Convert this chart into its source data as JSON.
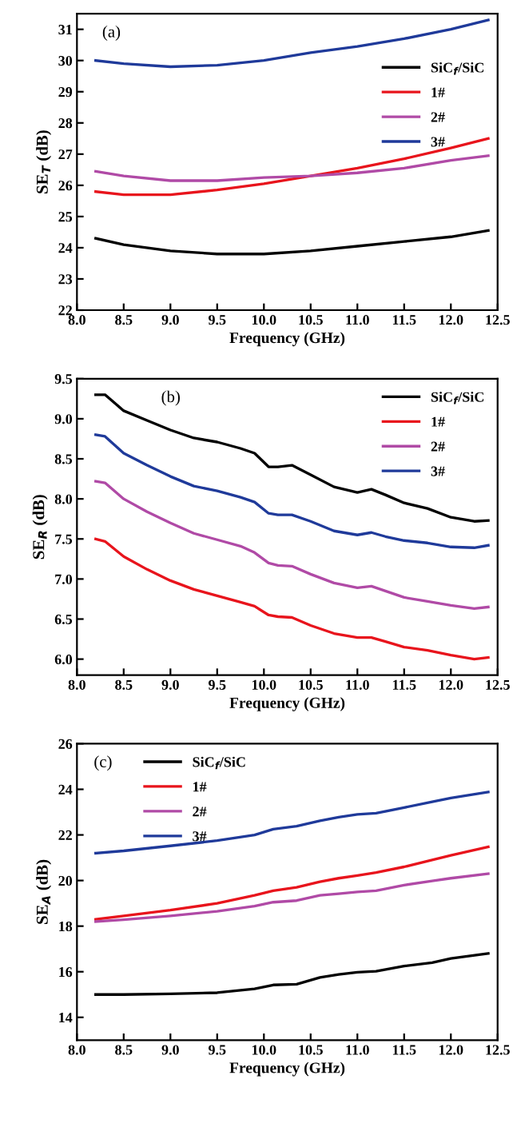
{
  "chart_data": [
    {
      "type": "line",
      "xlabel": "Frequency (GHz)",
      "ylabel": "SE$_{T}$ (dB)",
      "annotations": [
        "(a)"
      ],
      "legend": "top right",
      "grid": false,
      "x": [
        8.2,
        8.5,
        9.0,
        9.5,
        10.0,
        10.5,
        11.0,
        11.5,
        12.0,
        12.4
      ],
      "xlim": [
        8.0,
        12.5
      ],
      "xticks": [
        {
          "value": 8,
          "label": "8.0"
        },
        8.5,
        {
          "value": 9,
          "label": "9.0"
        },
        9.5,
        {
          "value": 10,
          "label": "10.0"
        },
        10.5,
        {
          "value": 11,
          "label": "11.0"
        },
        11.5,
        {
          "value": 12,
          "label": "12.0"
        },
        12.5
      ],
      "ylim": [
        22,
        31.5
      ],
      "yticks": [
        22,
        23,
        24,
        25,
        26,
        27,
        28,
        29,
        30,
        31
      ],
      "series": [
        {
          "name": "SiC$_{f}$/SiC",
          "color": "#000000",
          "values": [
            24.3,
            24.1,
            23.9,
            23.8,
            23.8,
            23.9,
            24.05,
            24.2,
            24.35,
            24.55
          ]
        },
        {
          "name": "1#",
          "color": "#e8141c",
          "values": [
            25.8,
            25.7,
            25.7,
            25.85,
            26.05,
            26.3,
            26.55,
            26.85,
            27.2,
            27.5
          ]
        },
        {
          "name": "2#",
          "color": "#b04aa6",
          "values": [
            26.45,
            26.3,
            26.15,
            26.15,
            26.25,
            26.3,
            26.4,
            26.55,
            26.8,
            26.95
          ]
        },
        {
          "name": "3#",
          "color": "#1f3a9a",
          "values": [
            30.0,
            29.9,
            29.8,
            29.85,
            30.0,
            30.25,
            30.45,
            30.7,
            31.0,
            31.3
          ]
        }
      ]
    },
    {
      "type": "line",
      "xlabel": "Frequency (GHz)",
      "ylabel": "SE$_{R}$ (dB)",
      "annotations": [
        "(b)"
      ],
      "legend": "top right",
      "grid": false,
      "x": [
        8.2,
        8.3,
        8.5,
        8.75,
        9.0,
        9.25,
        9.5,
        9.75,
        9.9,
        10.05,
        10.15,
        10.3,
        10.5,
        10.75,
        11.0,
        11.15,
        11.3,
        11.5,
        11.75,
        12.0,
        12.25,
        12.4
      ],
      "xlim": [
        8.0,
        12.5
      ],
      "xticks": [
        {
          "value": 8,
          "label": "8.0"
        },
        8.5,
        {
          "value": 9,
          "label": "9.0"
        },
        9.5,
        {
          "value": 10,
          "label": "10.0"
        },
        10.5,
        {
          "value": 11,
          "label": "11.0"
        },
        11.5,
        {
          "value": 12,
          "label": "12.0"
        },
        12.5
      ],
      "ylim": [
        5.8,
        9.5
      ],
      "yticks": [
        {
          "value": 6,
          "label": "6.0"
        },
        6.5,
        {
          "value": 7,
          "label": "7.0"
        },
        7.5,
        {
          "value": 8,
          "label": "8.0"
        },
        8.5,
        {
          "value": 9,
          "label": "9.0"
        },
        9.5
      ],
      "series": [
        {
          "name": "SiC$_{f}$/SiC",
          "color": "#000000",
          "values": [
            9.3,
            9.3,
            9.1,
            8.98,
            8.86,
            8.76,
            8.71,
            8.63,
            8.57,
            8.4,
            8.4,
            8.42,
            8.3,
            8.15,
            8.08,
            8.12,
            8.05,
            7.95,
            7.88,
            7.77,
            7.72,
            7.73
          ]
        },
        {
          "name": "1#",
          "color": "#e8141c",
          "values": [
            7.5,
            7.47,
            7.28,
            7.12,
            6.98,
            6.87,
            6.79,
            6.71,
            6.66,
            6.55,
            6.53,
            6.52,
            6.42,
            6.32,
            6.27,
            6.27,
            6.22,
            6.15,
            6.11,
            6.05,
            6.0,
            6.02
          ]
        },
        {
          "name": "2#",
          "color": "#b04aa6",
          "values": [
            8.22,
            8.2,
            8.0,
            7.84,
            7.7,
            7.57,
            7.49,
            7.41,
            7.33,
            7.2,
            7.17,
            7.16,
            7.06,
            6.95,
            6.89,
            6.91,
            6.85,
            6.77,
            6.72,
            6.67,
            6.63,
            6.65
          ]
        },
        {
          "name": "3#",
          "color": "#1f3a9a",
          "values": [
            8.8,
            8.78,
            8.57,
            8.42,
            8.28,
            8.16,
            8.1,
            8.02,
            7.96,
            7.82,
            7.8,
            7.8,
            7.72,
            7.6,
            7.55,
            7.58,
            7.53,
            7.48,
            7.45,
            7.4,
            7.39,
            7.42
          ]
        }
      ]
    },
    {
      "type": "line",
      "xlabel": "Frequency (GHz)",
      "ylabel": "SE$_{A}$ (dB)",
      "annotations": [
        "(c)"
      ],
      "legend": "top left",
      "grid": false,
      "x": [
        8.2,
        8.5,
        9.0,
        9.5,
        9.9,
        10.1,
        10.35,
        10.6,
        10.8,
        11.0,
        11.2,
        11.5,
        11.8,
        12.0,
        12.4
      ],
      "xlim": [
        8.0,
        12.5
      ],
      "xticks": [
        {
          "value": 8,
          "label": "8.0"
        },
        8.5,
        {
          "value": 9,
          "label": "9.0"
        },
        9.5,
        {
          "value": 10,
          "label": "10.0"
        },
        10.5,
        {
          "value": 11,
          "label": "11.0"
        },
        11.5,
        {
          "value": 12,
          "label": "12.0"
        },
        12.5
      ],
      "ylim": [
        13,
        26
      ],
      "yticks": [
        14,
        16,
        18,
        20,
        22,
        24,
        26
      ],
      "series": [
        {
          "name": "SiC$_{f}$/SiC",
          "color": "#000000",
          "values": [
            15.0,
            15.0,
            15.03,
            15.08,
            15.25,
            15.42,
            15.45,
            15.75,
            15.88,
            15.98,
            16.02,
            16.25,
            16.4,
            16.58,
            16.8
          ]
        },
        {
          "name": "1#",
          "color": "#e8141c",
          "values": [
            18.3,
            18.45,
            18.7,
            19.0,
            19.35,
            19.55,
            19.7,
            19.95,
            20.1,
            20.22,
            20.35,
            20.6,
            20.9,
            21.1,
            21.48
          ]
        },
        {
          "name": "2#",
          "color": "#b04aa6",
          "values": [
            18.2,
            18.28,
            18.45,
            18.65,
            18.88,
            19.05,
            19.12,
            19.35,
            19.42,
            19.5,
            19.55,
            19.8,
            19.98,
            20.1,
            20.3
          ]
        },
        {
          "name": "3#",
          "color": "#1f3a9a",
          "values": [
            21.2,
            21.3,
            21.52,
            21.75,
            22.0,
            22.25,
            22.38,
            22.62,
            22.78,
            22.9,
            22.95,
            23.2,
            23.45,
            23.62,
            23.88
          ]
        }
      ]
    }
  ]
}
